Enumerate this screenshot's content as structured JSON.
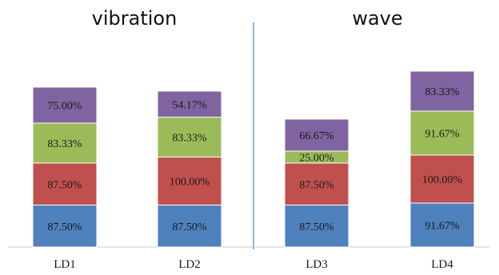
{
  "chart_data": {
    "type": "bar",
    "stacked": true,
    "group_titles": [
      "vibration",
      "wave"
    ],
    "groups": [
      {
        "title": "vibration",
        "categories": [
          "LD1",
          "LD2"
        ]
      },
      {
        "title": "wave",
        "categories": [
          "LD3",
          "LD4"
        ]
      }
    ],
    "categories": [
      "LD1",
      "LD2",
      "LD3",
      "LD4"
    ],
    "series": [
      {
        "color": "#4F81BD",
        "values": [
          87.5,
          87.5,
          87.5,
          91.67
        ],
        "labels": [
          "87.50%",
          "87.50%",
          "87.50%",
          "91.67%"
        ]
      },
      {
        "color": "#C0504D",
        "values": [
          87.5,
          100.0,
          87.5,
          100.0
        ],
        "labels": [
          "87.50%",
          "100.00%",
          "87.50%",
          "100.00%"
        ]
      },
      {
        "color": "#9BBB59",
        "values": [
          83.33,
          83.33,
          25.0,
          91.67
        ],
        "labels": [
          "83.33%",
          "83.33%",
          "25.00%",
          "91.67%"
        ]
      },
      {
        "color": "#8064A2",
        "values": [
          75.0,
          54.17,
          66.67,
          83.33
        ],
        "labels": [
          "75.00%",
          "54.17%",
          "66.67%",
          "83.33%"
        ]
      }
    ],
    "ylim": [
      0,
      400
    ],
    "grid": false,
    "legend": "none",
    "divider_color": "#5B8FC9"
  }
}
